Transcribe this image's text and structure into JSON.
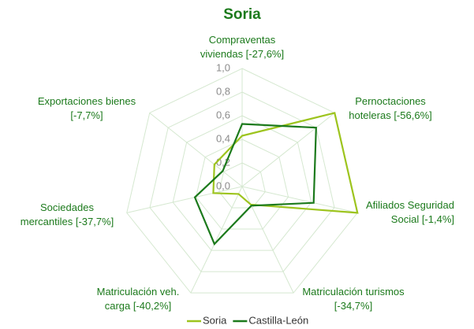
{
  "chart_data": {
    "type": "radar",
    "title": "Soria",
    "categories": [
      [
        "Compraventas",
        "viviendas [-27,6%]"
      ],
      [
        "Pernoctaciones",
        "hoteleras [-56,6%]"
      ],
      [
        "Afiliados Seguridad",
        "Social [-1,4%]"
      ],
      [
        "Matriculación turismos",
        "[-34,7%]"
      ],
      [
        "Matriculación veh.",
        "carga [-40,2%]"
      ],
      [
        "Sociedades",
        "mercantiles [-37,7%]"
      ],
      [
        "Exportaciones bienes",
        "[-7,7%]"
      ]
    ],
    "series": [
      {
        "name": "Soria",
        "color": "#9dc41e",
        "values": [
          0.43,
          1.0,
          1.0,
          0.17,
          0.07,
          0.25,
          0.3
        ]
      },
      {
        "name": "Castilla-León",
        "color": "#1c7a1c",
        "values": [
          0.53,
          0.8,
          0.62,
          0.18,
          0.54,
          0.41,
          0.21
        ]
      }
    ],
    "rlim": [
      0,
      1
    ],
    "rticks": [
      {
        "value": 0,
        "label": "0,0"
      },
      {
        "value": 0.2,
        "label": "0,2"
      },
      {
        "value": 0.4,
        "label": "0,4"
      },
      {
        "value": 0.6,
        "label": "0,6"
      },
      {
        "value": 0.8,
        "label": "0,8"
      },
      {
        "value": 1,
        "label": "1,0"
      }
    ],
    "grid": true,
    "legend": "bottom"
  }
}
